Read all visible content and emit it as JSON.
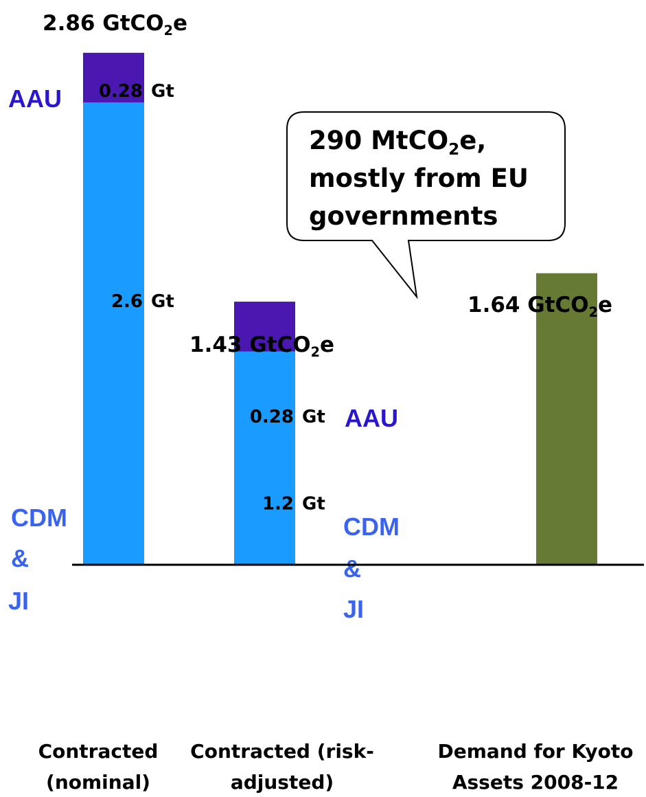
{
  "chart_data": {
    "type": "bar",
    "stacked": true,
    "categories": [
      "Contracted (nominal)",
      "Contracted (risk-adjusted)",
      "Demand for Kyoto Assets 2008-12"
    ],
    "category_labels": [
      [
        "Contracted",
        "(nominal)"
      ],
      [
        "Contracted (risk-",
        "adjusted)"
      ],
      [
        "Demand for Kyoto",
        "Assets 2008-12"
      ]
    ],
    "series": [
      {
        "name": "CDM & JI",
        "values": [
          2.6,
          1.2,
          0
        ],
        "color": "#1a9bff"
      },
      {
        "name": "AAU",
        "values": [
          0.28,
          0.28,
          0
        ],
        "color": "#4b17b1"
      },
      {
        "name": "Demand",
        "values": [
          0,
          0,
          1.64
        ],
        "color": "#667a33"
      }
    ],
    "segment_labels": [
      {
        "cat": 0,
        "series": 1,
        "value_text": "0.28",
        "unit": "Gt"
      },
      {
        "cat": 0,
        "series": 0,
        "value_text": "2.6",
        "unit": "Gt"
      },
      {
        "cat": 1,
        "series": 1,
        "value_text": "0.28",
        "unit": "Gt"
      },
      {
        "cat": 1,
        "series": 0,
        "value_text": "1.2",
        "unit": "Gt"
      }
    ],
    "totals": [
      {
        "cat": 0,
        "main": "2.86 GtCO",
        "sub": "2",
        "tail": "e"
      },
      {
        "cat": 1,
        "main": "1.43 GtCO",
        "sub": "2",
        "tail": "e"
      },
      {
        "cat": 2,
        "main": "1.64 GtCO",
        "sub": "2",
        "tail": "e"
      }
    ],
    "side_labels": {
      "aau": "AAU",
      "cdm_lines": [
        "CDM",
        "&",
        "JI"
      ]
    },
    "callout": {
      "line1_main": "290 MtCO",
      "line1_sub": "2",
      "line1_tail": "e,",
      "line2": "mostly from EU",
      "line3": "governments"
    },
    "ylim": [
      0,
      2.86
    ],
    "colors": {
      "cdm": "#1a9bff",
      "aau": "#4b17b1",
      "demand": "#667a33",
      "side_text": "#3a63ee",
      "aau_text": "#2a16cc"
    }
  }
}
